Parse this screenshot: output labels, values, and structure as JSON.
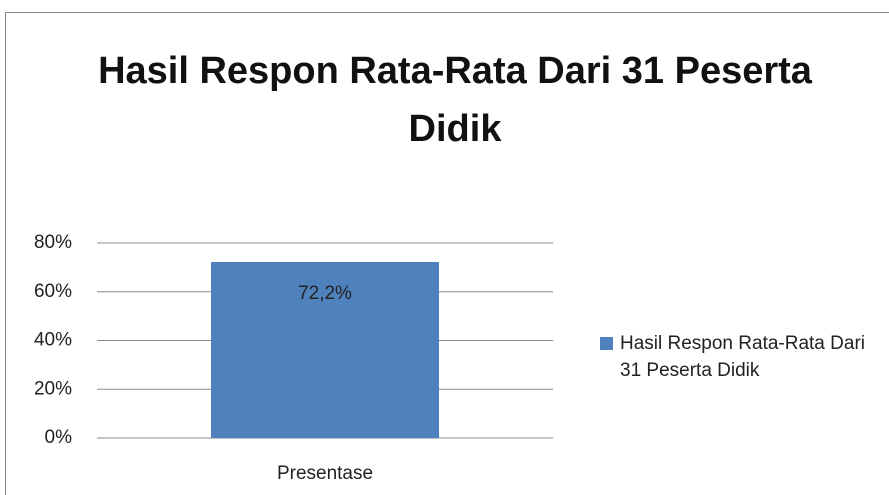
{
  "chart_data": {
    "type": "bar",
    "title": "Hasil Respon Rata-Rata Dari 31 Peserta Didik",
    "categories": [
      "Presentase"
    ],
    "series": [
      {
        "name": "Hasil Respon Rata-Rata Dari 31 Peserta Didik",
        "color": "#4f81bd",
        "values": [
          72.2
        ],
        "value_labels": [
          "72,2%"
        ]
      }
    ],
    "ylim": [
      0,
      80
    ],
    "yticks": [
      {
        "value": 0,
        "label": "0%"
      },
      {
        "value": 20,
        "label": "20%"
      },
      {
        "value": 40,
        "label": "40%"
      },
      {
        "value": 60,
        "label": "60%"
      },
      {
        "value": 80,
        "label": "80%"
      }
    ],
    "grid": true,
    "legend": "right"
  }
}
